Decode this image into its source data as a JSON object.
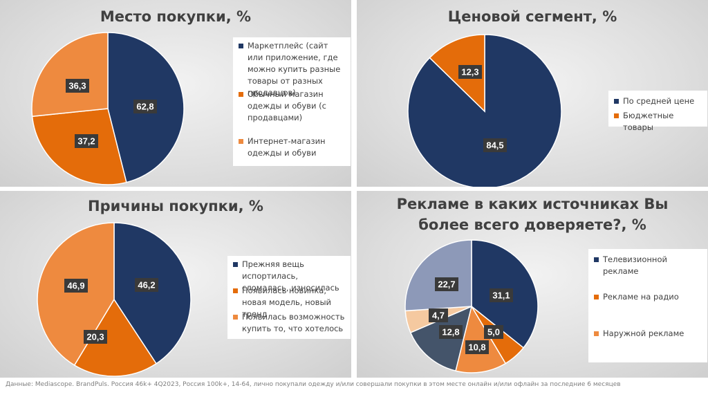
{
  "colors": {
    "dark_blue": "#203864",
    "orange": "#e46c0a",
    "light_orange": "#f4a460",
    "tan": "#f5c9a0",
    "slate": "#44546a",
    "periwinkle": "#8d99b8"
  },
  "chart_data": [
    {
      "type": "pie",
      "title": "Место покупки, %",
      "slices": [
        {
          "label": "Маркетплейс (сайт или приложение, где можно купить разные товары от разных продавцов)",
          "value": 62.8,
          "value_label": "62,8",
          "color": "#203864",
          "in_legend": true
        },
        {
          "label": "Обычный магазин одежды и обуви (с продавцами)",
          "value": 37.2,
          "value_label": "37,2",
          "color": "#e46c0a",
          "in_legend": true
        },
        {
          "label": "Интернет-магазин одежды и обуви",
          "value": 36.3,
          "value_label": "36,3",
          "color": "#ee8a3f",
          "in_legend": true
        }
      ]
    },
    {
      "type": "pie",
      "title": "Ценовой сегмент, %",
      "slices": [
        {
          "label": "По средней цене",
          "value": 84.5,
          "value_label": "84,5",
          "color": "#203864",
          "in_legend": true
        },
        {
          "label": "Бюджетные товары",
          "value": 12.3,
          "value_label": "12,3",
          "color": "#e46c0a",
          "in_legend": true
        }
      ]
    },
    {
      "type": "pie",
      "title": "Причины покупки, %",
      "slices": [
        {
          "label": "Прежняя вещь испортилась, сломалась, износилась",
          "value": 46.2,
          "value_label": "46,2",
          "color": "#203864",
          "in_legend": true
        },
        {
          "label": "Появилась новинка, новая модель, новый тренд",
          "value": 20.3,
          "value_label": "20,3",
          "color": "#e46c0a",
          "in_legend": true
        },
        {
          "label": "Появилась возможность купить то, что хотелось",
          "value": 46.9,
          "value_label": "46,9",
          "color": "#ee8a3f",
          "in_legend": true
        }
      ]
    },
    {
      "type": "pie",
      "title": "Рекламе в каких источниках Вы более всего доверяете?, %",
      "slices": [
        {
          "label": "Телевизионной рекламе",
          "value": 31.1,
          "value_label": "31,1",
          "color": "#203864",
          "in_legend": true
        },
        {
          "label": "Рекламе на радио",
          "value": 5.0,
          "value_label": "5,0",
          "color": "#e46c0a",
          "in_legend": true
        },
        {
          "label": "Наружной рекламе",
          "value": 10.8,
          "value_label": "10,8",
          "color": "#ee8a3f",
          "in_legend": true
        },
        {
          "label": "",
          "value": 12.8,
          "value_label": "12,8",
          "color": "#44546a",
          "in_legend": false
        },
        {
          "label": "",
          "value": 4.7,
          "value_label": "4,7",
          "color": "#f5c9a0",
          "in_legend": false
        },
        {
          "label": "",
          "value": 22.7,
          "value_label": "22,7",
          "color": "#8d99b8",
          "in_legend": false
        }
      ]
    }
  ],
  "footer": {
    "label": "Данные:",
    "text": "Mediascope. BrandPuls. Россия 46k+ 4Q2023, Россия 100k+, 14-64, лично покупали одежду и/или совершали покупки в этом месте онлайн и/или офлайн за последние 6 месяцев"
  }
}
